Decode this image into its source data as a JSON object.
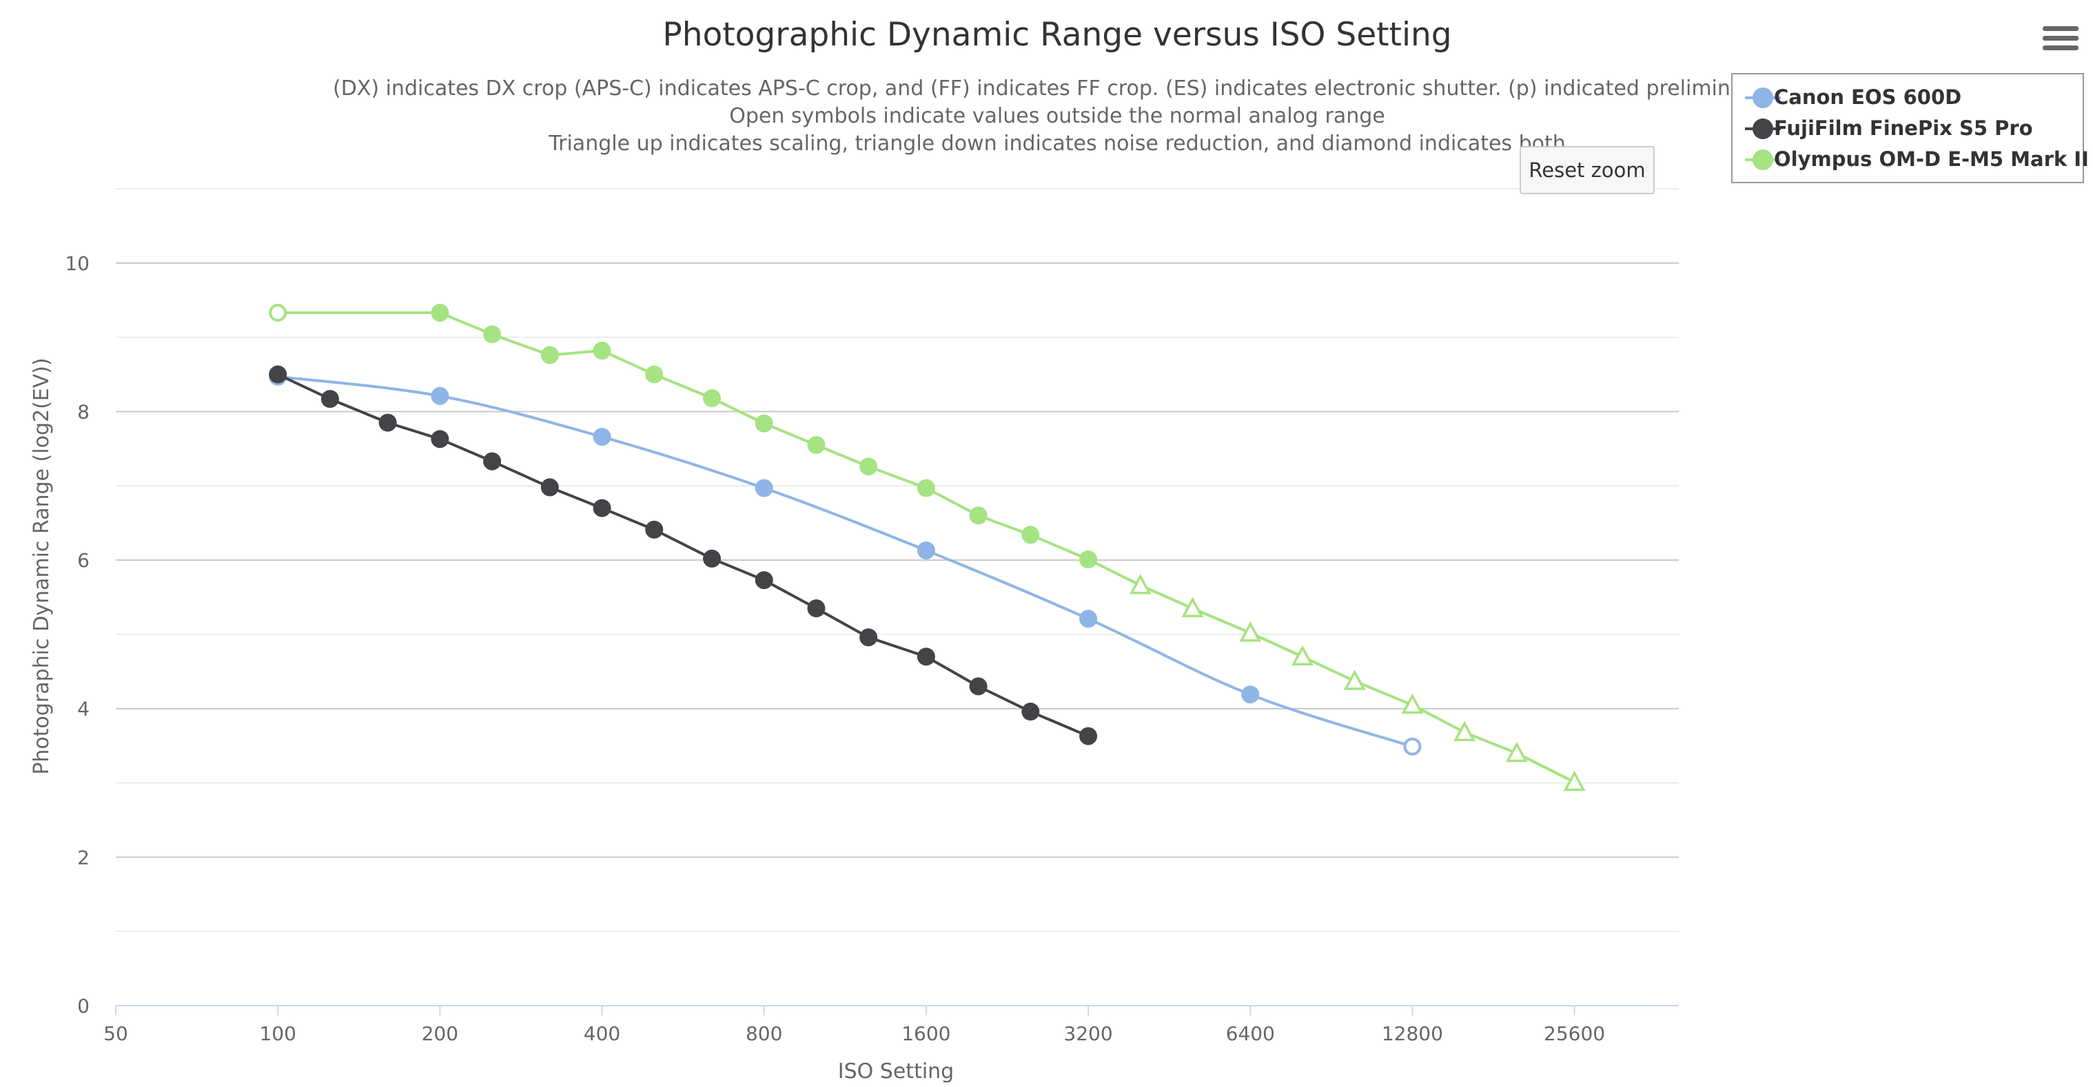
{
  "chart_data": {
    "type": "line",
    "title": "Photographic Dynamic Range versus ISO Setting",
    "subtitle_lines": [
      "(DX) indicates DX crop (APS-C) indicates APS-C crop, and (FF) indicates FF crop. (ES) indicates electronic shutter. (p) indicated preliminary c",
      "Open symbols indicate values outside the normal analog range",
      "Triangle up indicates scaling, triangle down indicates noise reduction, and diamond indicates both"
    ],
    "xlabel": "ISO Setting",
    "ylabel": "Photographic Dynamic Range (log2(EV))",
    "x_scale": "log2",
    "xlim": [
      50,
      40000
    ],
    "ylim": [
      0,
      11
    ],
    "x_ticks": [
      50,
      100,
      200,
      400,
      800,
      1600,
      3200,
      6400,
      12800,
      25600
    ],
    "y_ticks": [
      0,
      2,
      4,
      6,
      8,
      10
    ],
    "grid": true,
    "legend_position": "top-right",
    "series": [
      {
        "name": "Canon EOS 600D",
        "color": "#8fb5e6",
        "smooth": true,
        "points": [
          {
            "x": 100,
            "y": 8.47,
            "marker": "circle",
            "open": false
          },
          {
            "x": 200,
            "y": 8.21,
            "marker": "circle",
            "open": false
          },
          {
            "x": 400,
            "y": 7.66,
            "marker": "circle",
            "open": false
          },
          {
            "x": 800,
            "y": 6.97,
            "marker": "circle",
            "open": false
          },
          {
            "x": 1600,
            "y": 6.13,
            "marker": "circle",
            "open": false
          },
          {
            "x": 3200,
            "y": 5.21,
            "marker": "circle",
            "open": false
          },
          {
            "x": 6400,
            "y": 4.19,
            "marker": "circle",
            "open": false
          },
          {
            "x": 12800,
            "y": 3.49,
            "marker": "circle",
            "open": true
          }
        ]
      },
      {
        "name": "FujiFilm FinePix S5 Pro",
        "color": "#434348",
        "smooth": false,
        "points": [
          {
            "x": 100,
            "y": 8.5,
            "marker": "circle",
            "open": false
          },
          {
            "x": 125,
            "y": 8.17,
            "marker": "circle",
            "open": false
          },
          {
            "x": 160,
            "y": 7.85,
            "marker": "circle",
            "open": false
          },
          {
            "x": 200,
            "y": 7.63,
            "marker": "circle",
            "open": false
          },
          {
            "x": 250,
            "y": 7.33,
            "marker": "circle",
            "open": false
          },
          {
            "x": 320,
            "y": 6.98,
            "marker": "circle",
            "open": false
          },
          {
            "x": 400,
            "y": 6.7,
            "marker": "circle",
            "open": false
          },
          {
            "x": 500,
            "y": 6.41,
            "marker": "circle",
            "open": false
          },
          {
            "x": 640,
            "y": 6.02,
            "marker": "circle",
            "open": false
          },
          {
            "x": 800,
            "y": 5.73,
            "marker": "circle",
            "open": false
          },
          {
            "x": 1000,
            "y": 5.35,
            "marker": "circle",
            "open": false
          },
          {
            "x": 1250,
            "y": 4.96,
            "marker": "circle",
            "open": false
          },
          {
            "x": 1600,
            "y": 4.7,
            "marker": "circle",
            "open": false
          },
          {
            "x": 2000,
            "y": 4.3,
            "marker": "circle",
            "open": false
          },
          {
            "x": 2500,
            "y": 3.96,
            "marker": "circle",
            "open": false
          },
          {
            "x": 3200,
            "y": 3.63,
            "marker": "circle",
            "open": false
          }
        ]
      },
      {
        "name": "Olympus OM-D E-M5 Mark II",
        "color": "#a6e382",
        "smooth": false,
        "points": [
          {
            "x": 100,
            "y": 9.33,
            "marker": "circle",
            "open": true
          },
          {
            "x": 200,
            "y": 9.33,
            "marker": "circle",
            "open": false
          },
          {
            "x": 250,
            "y": 9.04,
            "marker": "circle",
            "open": false
          },
          {
            "x": 320,
            "y": 8.76,
            "marker": "circle",
            "open": false
          },
          {
            "x": 400,
            "y": 8.82,
            "marker": "circle",
            "open": false
          },
          {
            "x": 500,
            "y": 8.5,
            "marker": "circle",
            "open": false
          },
          {
            "x": 640,
            "y": 8.18,
            "marker": "circle",
            "open": false
          },
          {
            "x": 800,
            "y": 7.84,
            "marker": "circle",
            "open": false
          },
          {
            "x": 1000,
            "y": 7.55,
            "marker": "circle",
            "open": false
          },
          {
            "x": 1250,
            "y": 7.26,
            "marker": "circle",
            "open": false
          },
          {
            "x": 1600,
            "y": 6.97,
            "marker": "circle",
            "open": false
          },
          {
            "x": 2000,
            "y": 6.6,
            "marker": "circle",
            "open": false
          },
          {
            "x": 2500,
            "y": 6.34,
            "marker": "circle",
            "open": false
          },
          {
            "x": 3200,
            "y": 6.01,
            "marker": "circle",
            "open": false
          },
          {
            "x": 4000,
            "y": 5.66,
            "marker": "triangle-up",
            "open": true
          },
          {
            "x": 5000,
            "y": 5.35,
            "marker": "triangle-up",
            "open": true
          },
          {
            "x": 6400,
            "y": 5.02,
            "marker": "triangle-up",
            "open": true
          },
          {
            "x": 8000,
            "y": 4.7,
            "marker": "triangle-up",
            "open": true
          },
          {
            "x": 10000,
            "y": 4.37,
            "marker": "triangle-up",
            "open": true
          },
          {
            "x": 12800,
            "y": 4.05,
            "marker": "triangle-up",
            "open": true
          },
          {
            "x": 16000,
            "y": 3.68,
            "marker": "triangle-up",
            "open": true
          },
          {
            "x": 20000,
            "y": 3.4,
            "marker": "triangle-up",
            "open": true
          },
          {
            "x": 25600,
            "y": 3.01,
            "marker": "triangle-up",
            "open": true
          }
        ]
      }
    ]
  },
  "controls": {
    "reset_zoom_label": "Reset zoom",
    "menu_icon": "hamburger-menu-icon"
  }
}
